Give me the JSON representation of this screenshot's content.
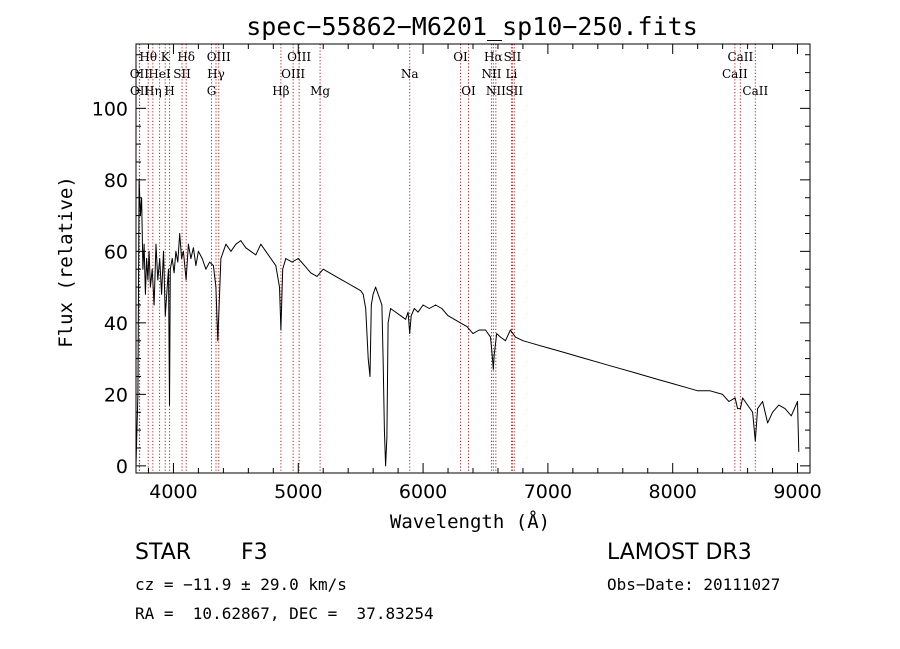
{
  "chart_data": {
    "type": "line",
    "title": "spec−55862−M6201_sp10−250.fits",
    "xlabel": "Wavelength (Å)",
    "ylabel": "Flux (relative)",
    "xlim": [
      3700,
      9100
    ],
    "ylim": [
      -2,
      118
    ],
    "x_ticks": [
      4000,
      5000,
      6000,
      7000,
      8000,
      9000
    ],
    "y_ticks": [
      0,
      20,
      40,
      60,
      80,
      100
    ],
    "series": [
      {
        "name": "flux",
        "x": [
          3700,
          3715,
          3725,
          3735,
          3745,
          3755,
          3765,
          3775,
          3785,
          3795,
          3805,
          3815,
          3830,
          3845,
          3860,
          3875,
          3890,
          3905,
          3920,
          3935,
          3950,
          3960,
          3968,
          3975,
          3990,
          4005,
          4020,
          4035,
          4050,
          4065,
          4080,
          4101,
          4120,
          4140,
          4160,
          4180,
          4200,
          4230,
          4260,
          4290,
          4320,
          4340,
          4355,
          4380,
          4420,
          4460,
          4500,
          4540,
          4580,
          4620,
          4660,
          4700,
          4740,
          4780,
          4820,
          4850,
          4861,
          4875,
          4900,
          4950,
          5000,
          5050,
          5100,
          5150,
          5200,
          5250,
          5300,
          5350,
          5400,
          5450,
          5500,
          5520,
          5540,
          5560,
          5575,
          5585,
          5600,
          5620,
          5650,
          5670,
          5680,
          5690,
          5700,
          5710,
          5720,
          5740,
          5780,
          5820,
          5860,
          5880,
          5893,
          5905,
          5930,
          5960,
          6000,
          6050,
          6100,
          6150,
          6200,
          6250,
          6300,
          6350,
          6400,
          6450,
          6500,
          6540,
          6556,
          6563,
          6570,
          6590,
          6620,
          6660,
          6700,
          6740,
          6800,
          6900,
          7000,
          7100,
          7200,
          7300,
          7400,
          7500,
          7600,
          7700,
          7800,
          7900,
          8000,
          8100,
          8200,
          8300,
          8400,
          8450,
          8500,
          8520,
          8542,
          8560,
          8600,
          8640,
          8662,
          8680,
          8720,
          8760,
          8800,
          8850,
          8900,
          8950,
          9000,
          9010
        ],
        "values": [
          0,
          20,
          80,
          70,
          75,
          55,
          62,
          48,
          58,
          52,
          60,
          50,
          55,
          45,
          62,
          52,
          58,
          48,
          60,
          42,
          50,
          55,
          17,
          55,
          58,
          54,
          60,
          57,
          65,
          58,
          60,
          52,
          62,
          58,
          61,
          56,
          60,
          58,
          55,
          57,
          56,
          50,
          35,
          58,
          62,
          60,
          62,
          63,
          61,
          60,
          59,
          62,
          60,
          58,
          56,
          50,
          38,
          55,
          58,
          57,
          58,
          56,
          54,
          53,
          55,
          54,
          53,
          52,
          51,
          50,
          49,
          48,
          44,
          30,
          25,
          45,
          48,
          50,
          47,
          45,
          30,
          10,
          0,
          8,
          40,
          44,
          43,
          42,
          41,
          43,
          37,
          42,
          44,
          43,
          45,
          44,
          45,
          44,
          42,
          41,
          40,
          39,
          37,
          38,
          38,
          36,
          30,
          27,
          31,
          37,
          36,
          35,
          38,
          36,
          35,
          34,
          33,
          32,
          31,
          30,
          29,
          28,
          27,
          26,
          25,
          24,
          23,
          22,
          21,
          21,
          20,
          18,
          19,
          16,
          16,
          19,
          17,
          15,
          7,
          16,
          18,
          12,
          15,
          17,
          16,
          14,
          18,
          4
        ]
      }
    ],
    "lines": [
      {
        "name": "Hθ",
        "x": 3798,
        "row": 1
      },
      {
        "name": "OII",
        "x": 3727,
        "row": 2
      },
      {
        "name": "OII",
        "x": 3729,
        "row": 3
      },
      {
        "name": "HeI",
        "x": 3889,
        "row": 2
      },
      {
        "name": "Hη",
        "x": 3835,
        "row": 3
      },
      {
        "name": "K",
        "x": 3934,
        "row": 1
      },
      {
        "name": "H",
        "x": 3969,
        "row": 3
      },
      {
        "name": "SII",
        "x": 4069,
        "row": 2
      },
      {
        "name": "Hδ",
        "x": 4102,
        "row": 1
      },
      {
        "name": "OIII",
        "x": 4363,
        "row": 1
      },
      {
        "name": "Hγ",
        "x": 4341,
        "row": 2
      },
      {
        "name": "G",
        "x": 4305,
        "row": 3
      },
      {
        "name": "OIII",
        "x": 4959,
        "row": 2
      },
      {
        "name": "OIII",
        "x": 5007,
        "row": 1
      },
      {
        "name": "Hβ",
        "x": 4861,
        "row": 3
      },
      {
        "name": "Mg",
        "x": 5175,
        "row": 3
      },
      {
        "name": "Na",
        "x": 5893,
        "row": 2
      },
      {
        "name": "OI",
        "x": 6300,
        "row": 1
      },
      {
        "name": "OI",
        "x": 6364,
        "row": 3
      },
      {
        "name": "Hα",
        "x": 6563,
        "row": 1
      },
      {
        "name": "NII",
        "x": 6548,
        "row": 2
      },
      {
        "name": "NII",
        "x": 6583,
        "row": 3
      },
      {
        "name": "SII",
        "x": 6716,
        "row": 1
      },
      {
        "name": "Li",
        "x": 6708,
        "row": 2
      },
      {
        "name": "SII",
        "x": 6731,
        "row": 3
      },
      {
        "name": "CaII",
        "x": 8542,
        "row": 1
      },
      {
        "name": "CaII",
        "x": 8498,
        "row": 2
      },
      {
        "name": "CaII",
        "x": 8662,
        "row": 3
      }
    ]
  },
  "info": {
    "class_label": "STAR",
    "subclass": "F3",
    "survey": "LAMOST DR3",
    "redshift": "cz = −11.9 ± 29.0 km/s",
    "obs_date": "Obs−Date: 20111027",
    "coords": "RA =  10.62867, DEC =  37.83254"
  },
  "colors": {
    "spectrum": "#000000",
    "line_marker": "#b02020",
    "axes": "#000000"
  }
}
